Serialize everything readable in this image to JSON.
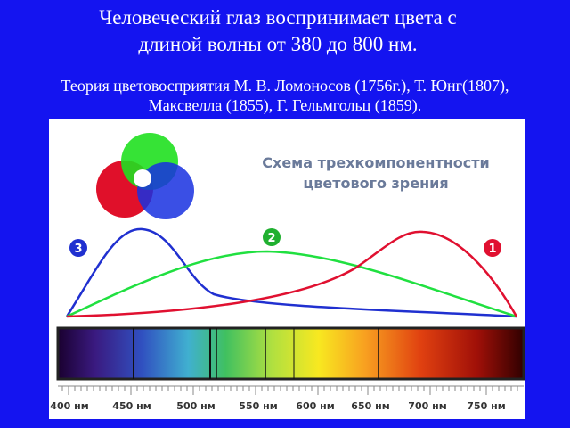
{
  "title": [
    "Человеческий глаз воспринимает цвета с",
    "длиной волны от 380 до 800 нм."
  ],
  "subtitle": [
    "Теория цветовосприятия М. В. Ломоносов (1756г.), Т. Юнг(1807),",
    "Максвелла (1855),  Г. Гельмгольц (1859)."
  ],
  "diagram": {
    "caption": [
      "Схема трехкомпонентности",
      "цветового зрения"
    ],
    "curve_labels": [
      "3",
      "2",
      "1"
    ],
    "wavelength_labels": [
      "400 нм",
      "450 нм",
      "500 нм",
      "550 нм",
      "600 нм",
      "650 нм",
      "700 нм",
      "750 нм"
    ]
  }
}
